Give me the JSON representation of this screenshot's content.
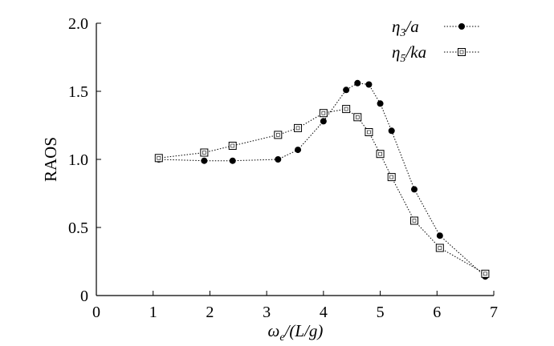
{
  "chart_data": {
    "type": "line",
    "xlabel": "ωe/(L/g)",
    "xlabel_parts": {
      "symbol": "ω",
      "subscript": "e",
      "rest": "/(L/g)"
    },
    "ylabel": "RAOS",
    "xlim": [
      0,
      7
    ],
    "ylim": [
      0,
      2.0
    ],
    "x_ticks": [
      0,
      1,
      2,
      3,
      4,
      5,
      6,
      7
    ],
    "x_tick_labels": [
      "0",
      "1",
      "2",
      "3",
      "4",
      "5",
      "6",
      "7"
    ],
    "y_ticks": [
      0,
      0.5,
      1.0,
      1.5,
      2.0
    ],
    "y_tick_labels": [
      "0",
      "0.5",
      "1.0",
      "1.5",
      "2.0"
    ],
    "grid": false,
    "legend_position": "top-right",
    "series": [
      {
        "name": "η3/a",
        "legend_parts": {
          "symbol": "η",
          "subscript": "3",
          "rest": "/a"
        },
        "marker": "filled-circle",
        "color": "#000000",
        "x": [
          1.1,
          1.9,
          2.4,
          3.2,
          3.55,
          4.0,
          4.4,
          4.6,
          4.8,
          5.0,
          5.2,
          5.6,
          6.05,
          6.85
        ],
        "y": [
          1.0,
          0.99,
          0.99,
          1.0,
          1.07,
          1.28,
          1.51,
          1.56,
          1.55,
          1.41,
          1.21,
          0.78,
          0.44,
          0.14
        ]
      },
      {
        "name": "η5/ka",
        "legend_parts": {
          "symbol": "η",
          "subscript": "5",
          "rest": "/ka"
        },
        "marker": "open-square",
        "color": "#000000",
        "x": [
          1.1,
          1.9,
          2.4,
          3.2,
          3.55,
          4.0,
          4.4,
          4.6,
          4.8,
          5.0,
          5.2,
          5.6,
          6.05,
          6.85
        ],
        "y": [
          1.01,
          1.05,
          1.1,
          1.18,
          1.23,
          1.34,
          1.37,
          1.31,
          1.2,
          1.04,
          0.87,
          0.55,
          0.35,
          0.16
        ]
      }
    ]
  }
}
